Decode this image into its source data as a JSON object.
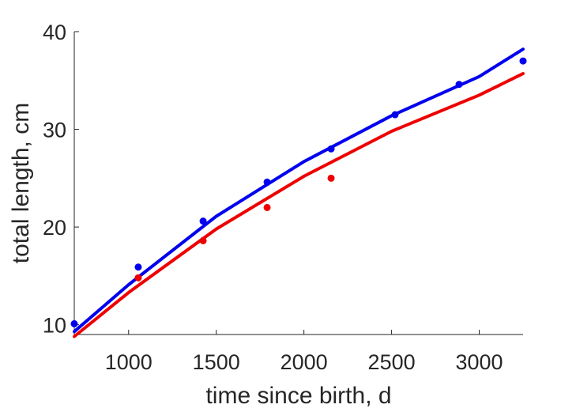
{
  "chart_data": {
    "type": "scatter",
    "title": "",
    "xlabel": "time since birth, d",
    "ylabel": "total length, cm",
    "xlim": [
      690,
      3250
    ],
    "ylim": [
      9,
      40
    ],
    "xticks": [
      1000,
      1500,
      2000,
      2500,
      3000
    ],
    "yticks": [
      10,
      20,
      30,
      40
    ],
    "xtick_labels": [
      "1000",
      "1500",
      "2000",
      "2500",
      "3000"
    ],
    "ytick_labels": [
      "10",
      "20",
      "30",
      "40"
    ],
    "grid": false,
    "legend": "none",
    "series": [
      {
        "color": "#0000ee",
        "kind": "points",
        "x": [
          690,
          1055,
          1425,
          1790,
          2155,
          2520,
          2885,
          3250
        ],
        "y": [
          10.1,
          15.9,
          20.6,
          24.6,
          28.0,
          31.5,
          34.6,
          37.0
        ]
      },
      {
        "color": "#0000ee",
        "kind": "fit",
        "x": [
          690,
          1000,
          1500,
          2000,
          2500,
          3000,
          3250
        ],
        "y": [
          9.3,
          14.1,
          21.1,
          26.7,
          31.4,
          35.4,
          38.2
        ]
      },
      {
        "color": "#ee0000",
        "kind": "points",
        "x": [
          1055,
          1425,
          1790,
          2155
        ],
        "y": [
          14.8,
          18.6,
          22.0,
          25.0
        ]
      },
      {
        "color": "#ee0000",
        "kind": "fit",
        "x": [
          690,
          1000,
          1500,
          2000,
          2500,
          3000,
          3250
        ],
        "y": [
          8.8,
          13.3,
          19.8,
          25.2,
          29.8,
          33.5,
          35.7
        ]
      }
    ]
  }
}
